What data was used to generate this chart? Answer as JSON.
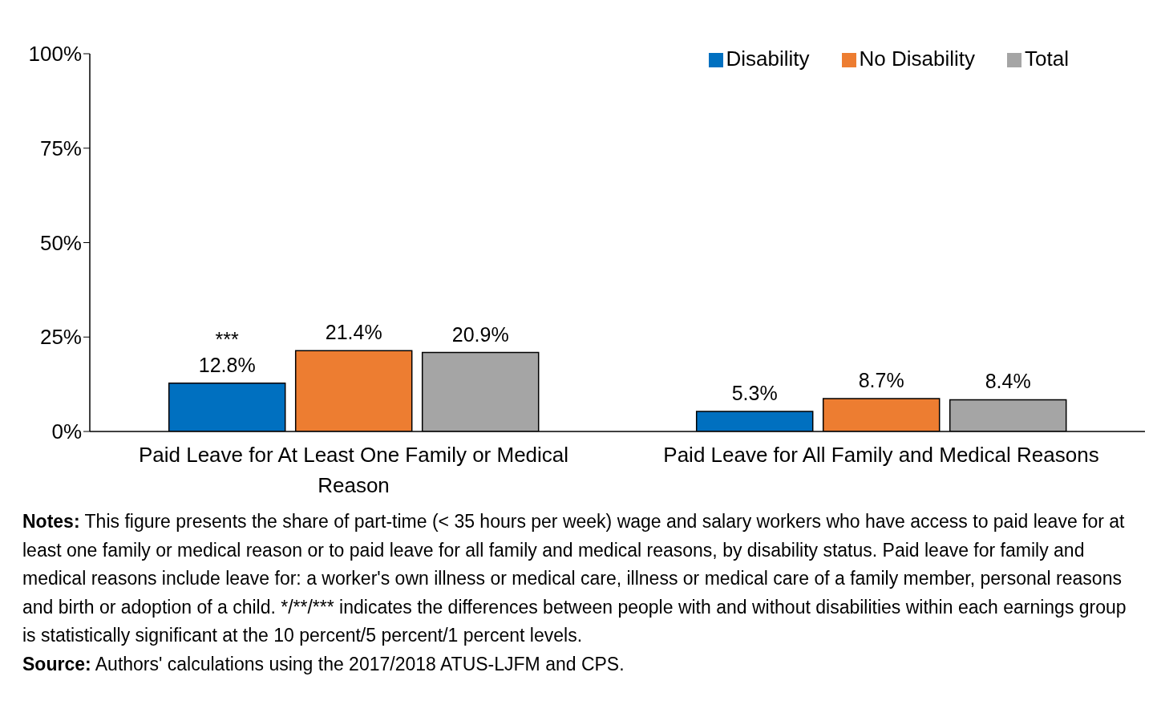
{
  "chart_data": {
    "type": "bar",
    "categories": [
      "Paid Leave for At Least One Family or Medical Reason",
      "Paid Leave for All Family and Medical Reasons"
    ],
    "series": [
      {
        "name": "Disability",
        "color": "#0070c0",
        "values": [
          12.8,
          5.3
        ],
        "value_labels": [
          "12.8%",
          "5.3%"
        ]
      },
      {
        "name": "No Disability",
        "color": "#ed7d31",
        "values": [
          21.4,
          8.7
        ],
        "value_labels": [
          "21.4%",
          "8.7%"
        ]
      },
      {
        "name": "Total",
        "color": "#a5a5a5",
        "values": [
          20.9,
          8.4
        ],
        "value_labels": [
          "20.9%",
          "8.4%"
        ]
      }
    ],
    "ylim": [
      0,
      100
    ],
    "yticks": [
      {
        "value": 0,
        "label": "0%"
      },
      {
        "value": 25,
        "label": "25%"
      },
      {
        "value": 50,
        "label": "50%"
      },
      {
        "value": 75,
        "label": "75%"
      },
      {
        "value": 100,
        "label": "100%"
      }
    ],
    "legend": "top right",
    "annotations": [
      "***",
      "Notes: This figure presents the share of part-time (< 35 hours per week) wage and salary workers who have access to paid leave for at least one family or medical reason or to paid leave for all family and medical reasons, by disability status. Paid leave for family and medical reasons include leave for: a worker's own illness or medical care, illness or medical care of a family member, personal reasons and birth or adoption of a child. */**/*** indicates the differences between people with and without disabilities within each earnings group is statistically significant at the 10 percent/5 percent/1 percent levels.",
      "Source: Authors' calculations using the 2017/2018 ATUS-LJFM and CPS."
    ]
  }
}
